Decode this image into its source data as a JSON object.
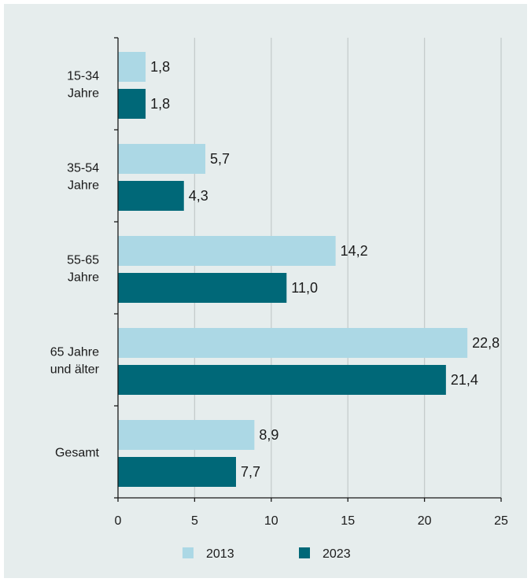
{
  "chart_data": {
    "type": "bar",
    "orientation": "horizontal",
    "categories": [
      [
        "15-34",
        "Jahre"
      ],
      [
        "35-54",
        "Jahre"
      ],
      [
        "55-65",
        "Jahre"
      ],
      [
        "65 Jahre",
        "und älter"
      ],
      [
        "Gesamt"
      ]
    ],
    "series": [
      {
        "name": "2013",
        "color": "#acd8e5",
        "values": [
          1.8,
          5.7,
          14.2,
          22.8,
          8.9
        ],
        "labels": [
          "1,8",
          "5,7",
          "14,2",
          "22,8",
          "8,9"
        ]
      },
      {
        "name": "2023",
        "color": "#006878",
        "values": [
          1.8,
          4.3,
          11.0,
          21.4,
          7.7
        ],
        "labels": [
          "1,8",
          "4,3",
          "11,0",
          "21,4",
          "7,7"
        ]
      }
    ],
    "xlim": [
      0,
      25
    ],
    "xticks": [
      0,
      5,
      10,
      15,
      20,
      25
    ],
    "xtick_labels": [
      "0",
      "5",
      "10",
      "15",
      "20",
      "25"
    ],
    "grid": "vertical",
    "legend": "bottom",
    "title": "",
    "xlabel": "",
    "ylabel": ""
  }
}
